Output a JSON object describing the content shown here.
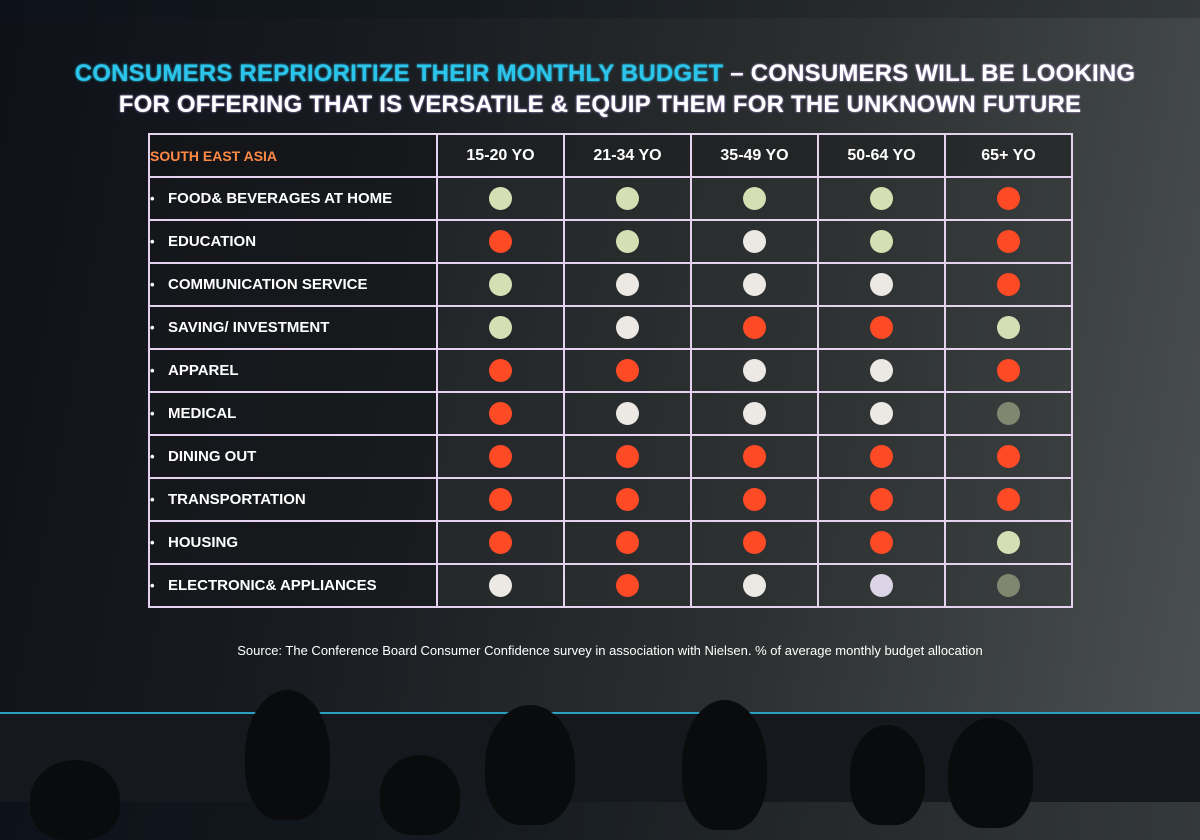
{
  "slide": {
    "title_accent": "CONSUMERS REPRIORITIZE THEIR MONTHLY BUDGET",
    "title_rest_line1": " – CONSUMERS WILL BE LOOKING",
    "title_line2": "FOR OFFERING THAT IS VERSATILE & EQUIP THEM FOR THE UNKNOWN FUTURE",
    "source": "Source: The Conference Board Consumer Confidence survey in association with Nielsen. % of average monthly budget allocation"
  },
  "colors": {
    "accent_title": "#2bc4ea",
    "region_label": "#ff8a45",
    "red": "#ff4a26",
    "green": "#d6dfb4",
    "white": "#ece9e4",
    "olive": "#7f8771",
    "lavender": "#ddd3e6"
  },
  "chart_data": {
    "type": "table",
    "title": "CONSUMERS REPRIORITIZE THEIR MONTHLY BUDGET – CONSUMERS WILL BE LOOKING FOR OFFERING THAT IS VERSATILE & EQUIP THEM FOR THE UNKNOWN FUTURE",
    "region": "SOUTH EAST ASIA",
    "columns": [
      "15-20 YO",
      "21-34 YO",
      "35-49 YO",
      "50-64 YO",
      "65+ YO"
    ],
    "rows": [
      {
        "label": "FOOD& BEVERAGES AT HOME",
        "values": [
          "green",
          "green",
          "green",
          "green",
          "red"
        ]
      },
      {
        "label": "EDUCATION",
        "values": [
          "red",
          "green",
          "white",
          "green",
          "red"
        ]
      },
      {
        "label": "COMMUNICATION SERVICE",
        "values": [
          "green",
          "white",
          "white",
          "white",
          "red"
        ]
      },
      {
        "label": "SAVING/ INVESTMENT",
        "values": [
          "green",
          "white",
          "red",
          "red",
          "green"
        ]
      },
      {
        "label": "APPAREL",
        "values": [
          "red",
          "red",
          "white",
          "white",
          "red"
        ]
      },
      {
        "label": "MEDICAL",
        "values": [
          "red",
          "white",
          "white",
          "white",
          "olive"
        ]
      },
      {
        "label": "DINING OUT",
        "values": [
          "red",
          "red",
          "red",
          "red",
          "red"
        ]
      },
      {
        "label": "TRANSPORTATION",
        "values": [
          "red",
          "red",
          "red",
          "red",
          "red"
        ]
      },
      {
        "label": "HOUSING",
        "values": [
          "red",
          "red",
          "red",
          "red",
          "green"
        ]
      },
      {
        "label": "ELECTRONIC& APPLIANCES",
        "values": [
          "white",
          "red",
          "white",
          "lavender",
          "olive"
        ]
      }
    ],
    "note": "Source: The Conference Board Consumer Confidence survey in association with Nielsen. % of average monthly budget allocation"
  }
}
